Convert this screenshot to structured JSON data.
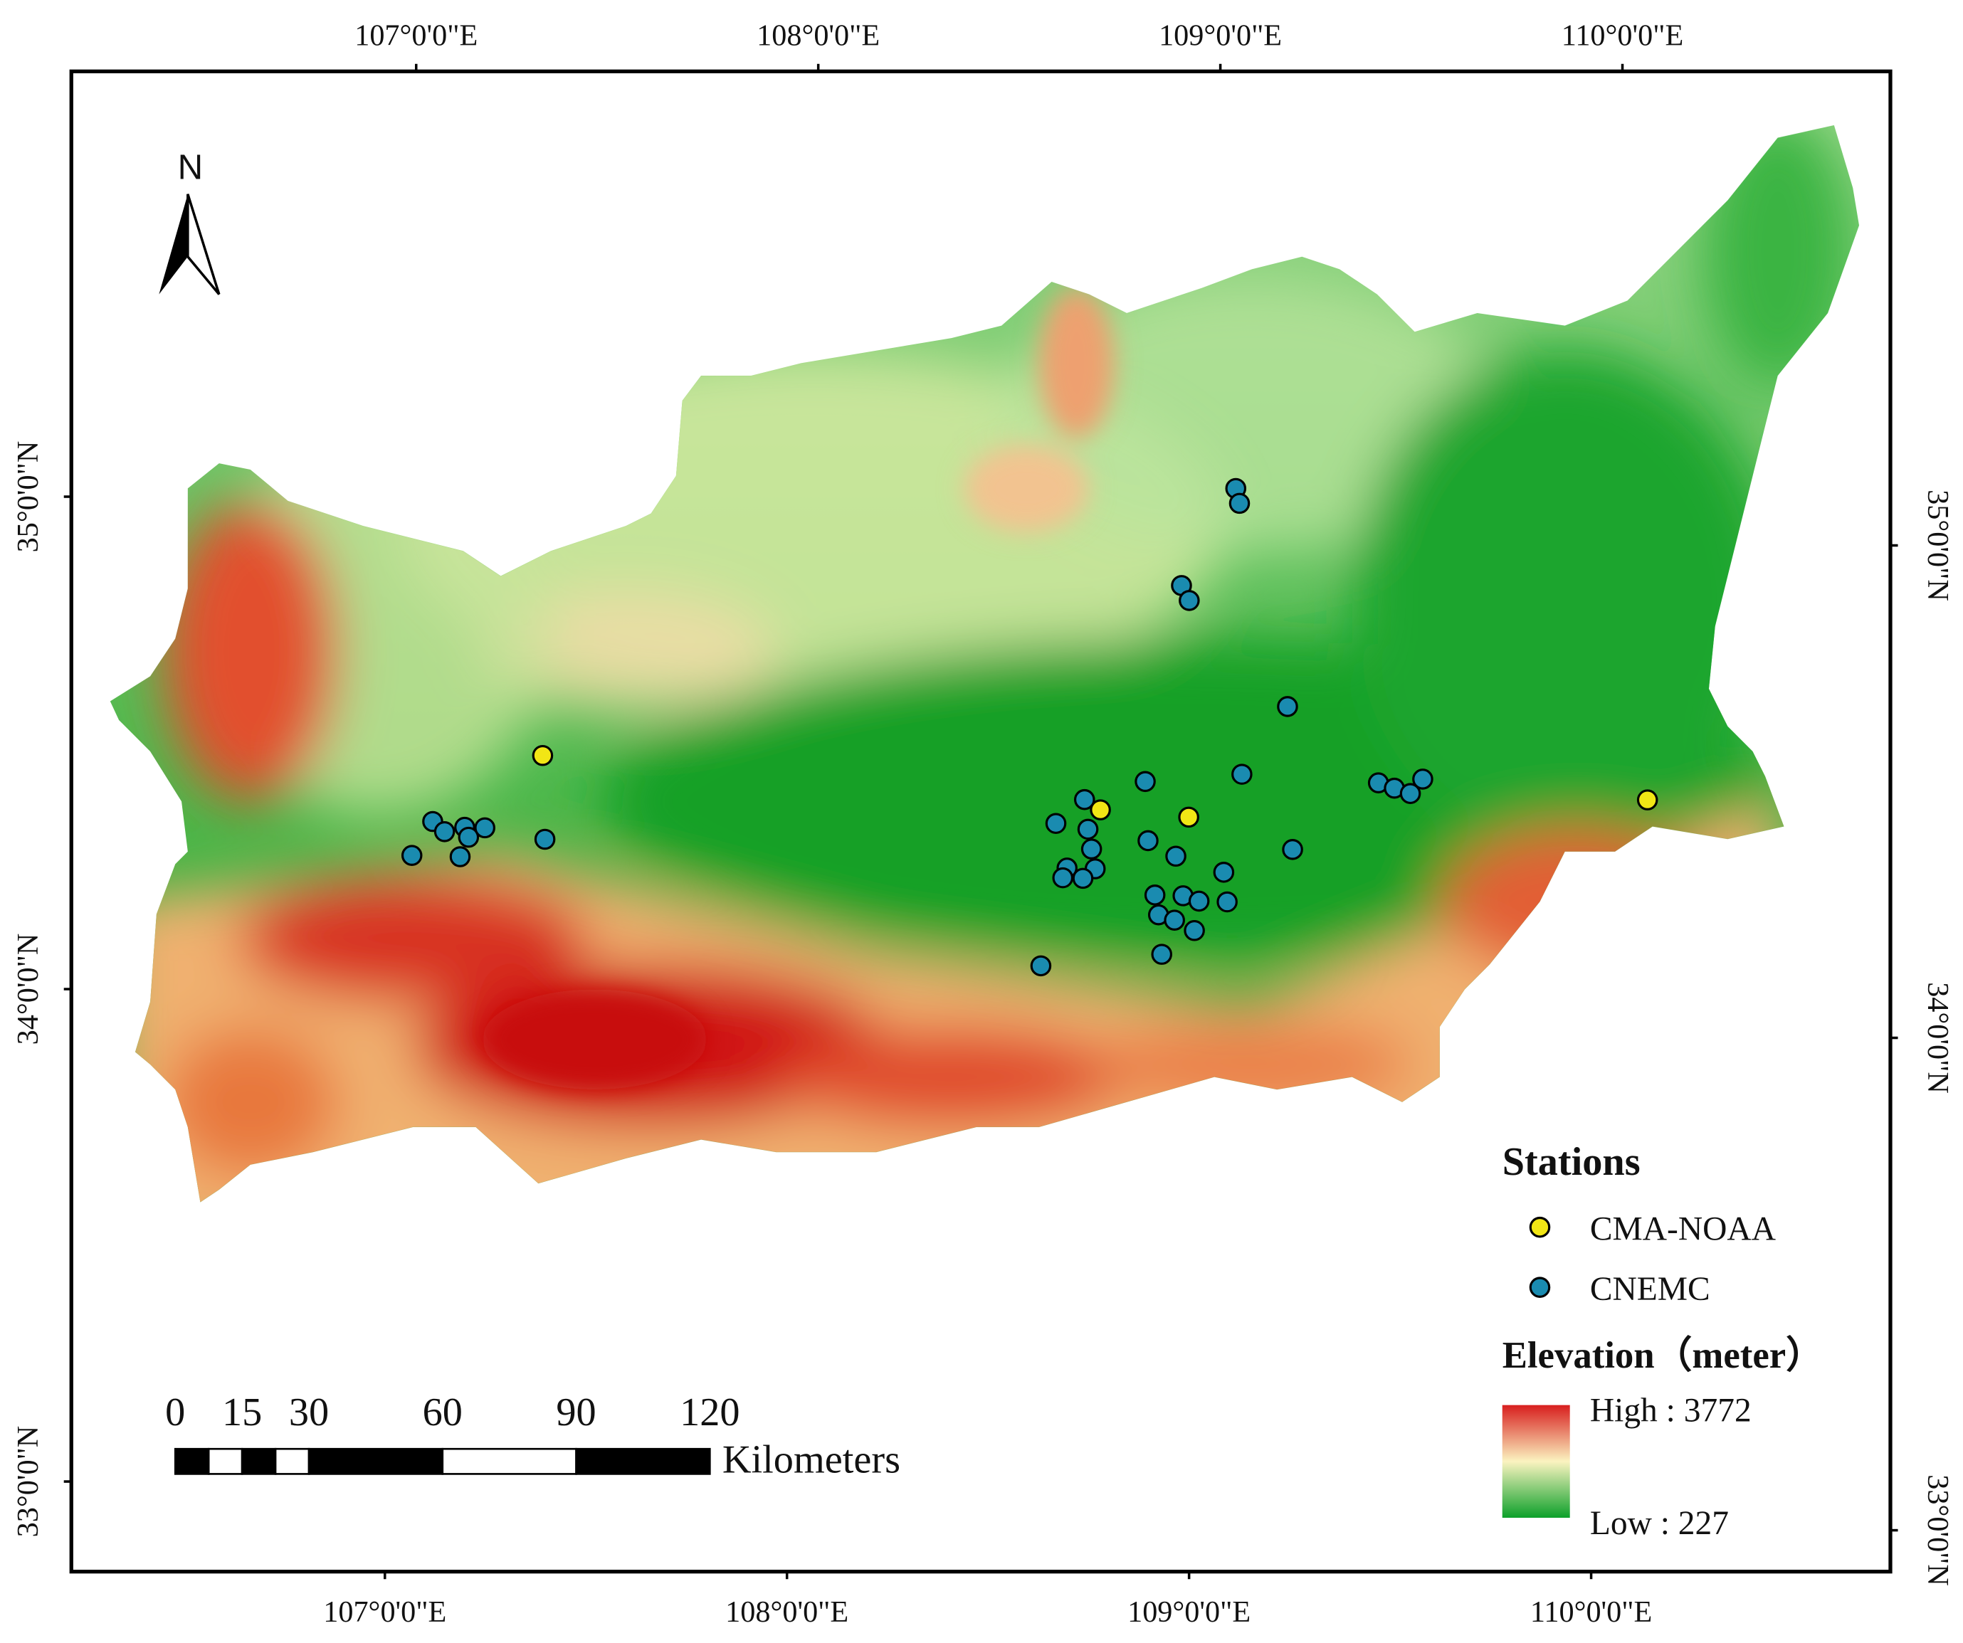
{
  "map": {
    "graticule": {
      "lon": [
        {
          "value": 107,
          "label": "107°0'0\"E"
        },
        {
          "value": 108,
          "label": "108°0'0\"E"
        },
        {
          "value": 109,
          "label": "109°0'0\"E"
        },
        {
          "value": 110,
          "label": "110°0'0\"E"
        }
      ],
      "lat": [
        {
          "value": 33,
          "label": "33°0'0\"N"
        },
        {
          "value": 34,
          "label": "34°0'0\"N"
        },
        {
          "value": 35,
          "label": "35°0'0\"N"
        }
      ]
    },
    "north_arrow": "N",
    "scale_bar": {
      "ticks": [
        0,
        15,
        30,
        60,
        90,
        120
      ],
      "unit": "Kilometers"
    },
    "stations": {
      "title": "Stations",
      "series": [
        {
          "name": "CMA-NOAA",
          "color": "#f2e615",
          "points": [
            [
              107.35,
              34.5
            ],
            [
              108.74,
              34.42
            ],
            [
              108.96,
              34.41
            ],
            [
              110.1,
              34.47
            ]
          ]
        },
        {
          "name": "CNEMC",
          "color": "#1a8bb0",
          "points": [
            [
              109.06,
              35.08
            ],
            [
              109.07,
              35.05
            ],
            [
              108.93,
              34.88
            ],
            [
              108.95,
              34.85
            ],
            [
              109.2,
              34.64
            ],
            [
              109.09,
              34.5
            ],
            [
              108.85,
              34.48
            ],
            [
              108.7,
              34.44
            ],
            [
              108.63,
              34.39
            ],
            [
              108.71,
              34.38
            ],
            [
              108.72,
              34.34
            ],
            [
              108.86,
              34.36
            ],
            [
              108.93,
              34.33
            ],
            [
              108.66,
              34.3
            ],
            [
              108.73,
              34.3
            ],
            [
              108.65,
              34.28
            ],
            [
              108.7,
              34.28
            ],
            [
              109.05,
              34.3
            ],
            [
              108.88,
              34.25
            ],
            [
              108.95,
              34.25
            ],
            [
              108.99,
              34.24
            ],
            [
              109.06,
              34.24
            ],
            [
              108.89,
              34.21
            ],
            [
              108.93,
              34.2
            ],
            [
              108.98,
              34.18
            ],
            [
              108.9,
              34.13
            ],
            [
              108.6,
              34.1
            ],
            [
              109.22,
              34.35
            ],
            [
              109.43,
              34.49
            ],
            [
              109.47,
              34.48
            ],
            [
              109.51,
              34.47
            ],
            [
              109.54,
              34.5
            ],
            [
              107.08,
              34.36
            ],
            [
              107.11,
              34.34
            ],
            [
              107.16,
              34.35
            ],
            [
              107.17,
              34.33
            ],
            [
              107.21,
              34.35
            ],
            [
              107.03,
              34.29
            ],
            [
              107.15,
              34.29
            ],
            [
              107.36,
              34.33
            ]
          ]
        }
      ]
    },
    "elevation": {
      "title": "Elevation（meter）",
      "high": "High : 3772",
      "low": "Low : 227"
    }
  }
}
